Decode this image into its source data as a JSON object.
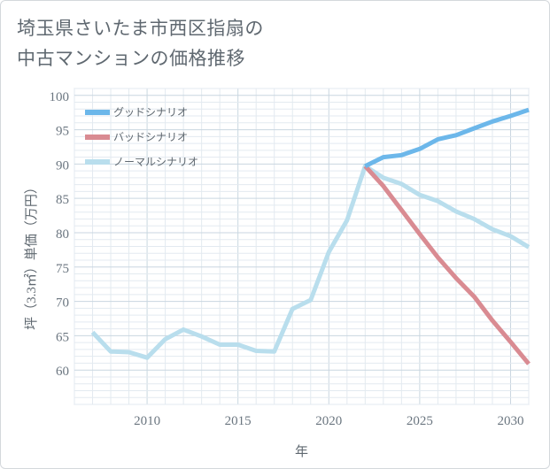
{
  "title": {
    "line1": "埼玉県さいたま市西区指扇の",
    "line2": "中古マンションの価格推移"
  },
  "chart_data": {
    "type": "line",
    "title": "埼玉県さいたま市西区指扇の中古マンションの価格推移",
    "xlabel": "年",
    "ylabel": "坪（3.3㎡）単価（万円）",
    "xlim": [
      2006,
      2031
    ],
    "ylim": [
      55,
      101
    ],
    "xticks": [
      2010,
      2015,
      2020,
      2025,
      2030
    ],
    "yticks": [
      60,
      65,
      70,
      75,
      80,
      85,
      90,
      95,
      100
    ],
    "grid": true,
    "legend_position": "top-left",
    "series": [
      {
        "name": "グッドシナリオ",
        "color": "#6cb7ea",
        "x": [
          2022,
          2023,
          2024,
          2025,
          2026,
          2027,
          2028,
          2029,
          2030,
          2031
        ],
        "y": [
          89.7,
          91.0,
          91.3,
          92.2,
          93.6,
          94.2,
          95.2,
          96.2,
          97.0,
          97.9
        ]
      },
      {
        "name": "バッドシナリオ",
        "color": "#d98b92",
        "x": [
          2022,
          2023,
          2024,
          2025,
          2026,
          2027,
          2028,
          2029,
          2030,
          2031
        ],
        "y": [
          89.7,
          86.8,
          83.3,
          79.8,
          76.4,
          73.4,
          70.7,
          67.2,
          64.1,
          60.9
        ]
      },
      {
        "name": "ノーマルシナリオ",
        "color": "#b9deed",
        "x": [
          2007,
          2008,
          2009,
          2010,
          2011,
          2012,
          2013,
          2014,
          2015,
          2016,
          2017,
          2018,
          2019,
          2020,
          2021,
          2022,
          2023,
          2024,
          2025,
          2026,
          2027,
          2028,
          2029,
          2030,
          2031
        ],
        "y": [
          65.5,
          62.7,
          62.6,
          61.8,
          64.5,
          65.9,
          64.9,
          63.7,
          63.7,
          62.8,
          62.7,
          68.9,
          70.2,
          77.2,
          81.8,
          89.7,
          88.0,
          87.1,
          85.5,
          84.6,
          83.1,
          82.0,
          80.5,
          79.5,
          77.9
        ]
      }
    ]
  }
}
